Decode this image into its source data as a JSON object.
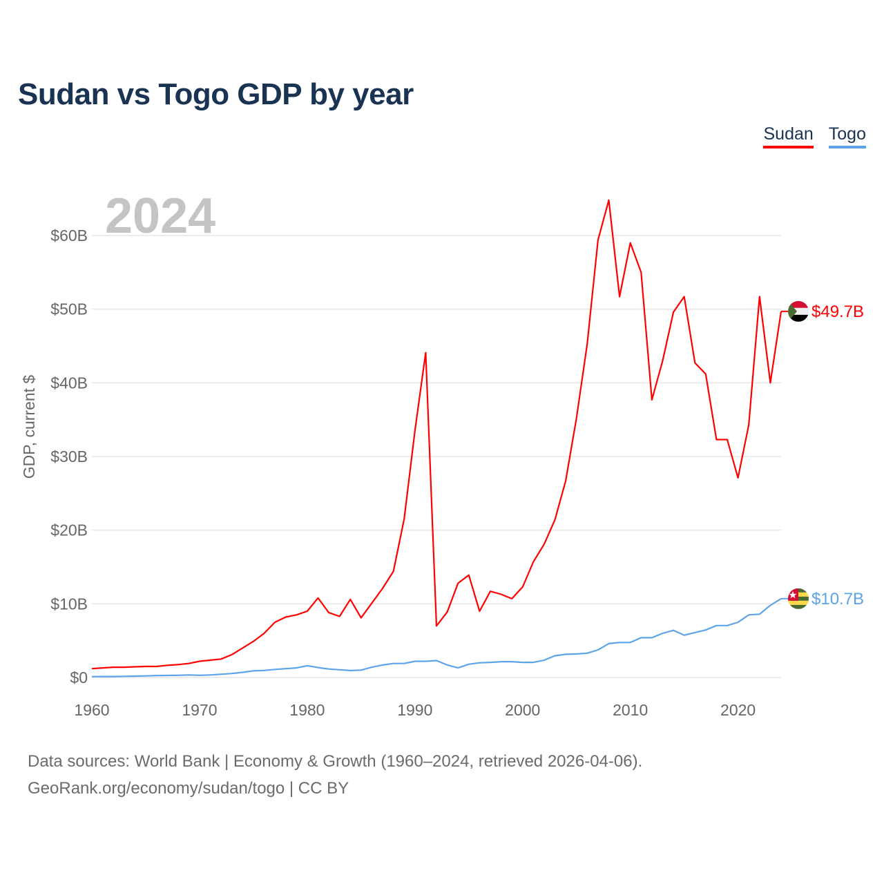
{
  "title": "Sudan vs Togo GDP by year",
  "footer": {
    "line1": "Data sources: World Bank | Economy & Growth (1960–2024, retrieved 2026-04-06).",
    "line2": "GeoRank.org/economy/sudan/togo | CC BY"
  },
  "chart_data": {
    "type": "line",
    "title": "Sudan vs Togo GDP by year",
    "year_label": "2024",
    "xlabel": "",
    "ylabel": "GDP, current $",
    "xlim": [
      1960,
      2024
    ],
    "ylim": [
      0,
      65
    ],
    "x_ticks": [
      1960,
      1970,
      1980,
      1990,
      2000,
      2010,
      2020
    ],
    "x_tick_labels": [
      "1960",
      "1970",
      "1980",
      "1990",
      "2000",
      "2010",
      "2020"
    ],
    "y_ticks": [
      0,
      10,
      20,
      30,
      40,
      50,
      60
    ],
    "y_tick_labels": [
      "$0",
      "$10B",
      "$20B",
      "$30B",
      "$40B",
      "$50B",
      "$60B"
    ],
    "grid": true,
    "legend_position": "top-right",
    "x": [
      1960,
      1961,
      1962,
      1963,
      1964,
      1965,
      1966,
      1967,
      1968,
      1969,
      1970,
      1971,
      1972,
      1973,
      1974,
      1975,
      1976,
      1977,
      1978,
      1979,
      1980,
      1981,
      1982,
      1983,
      1984,
      1985,
      1986,
      1987,
      1988,
      1989,
      1990,
      1991,
      1992,
      1993,
      1994,
      1995,
      1996,
      1997,
      1998,
      1999,
      2000,
      2001,
      2002,
      2003,
      2004,
      2005,
      2006,
      2007,
      2008,
      2009,
      2010,
      2011,
      2012,
      2013,
      2014,
      2015,
      2016,
      2017,
      2018,
      2019,
      2020,
      2021,
      2022,
      2023,
      2024
    ],
    "series": [
      {
        "name": "Sudan",
        "color": "#ff0000",
        "end_label": "$49.7B",
        "flag": "sudan-flag",
        "values": [
          1.2,
          1.3,
          1.4,
          1.4,
          1.45,
          1.5,
          1.5,
          1.65,
          1.75,
          1.9,
          2.2,
          2.35,
          2.5,
          3.1,
          4.0,
          4.9,
          6.0,
          7.5,
          8.2,
          8.5,
          9.0,
          10.8,
          8.8,
          8.3,
          10.6,
          8.1,
          10.1,
          12.1,
          14.4,
          21.5,
          33.5,
          44.1,
          7.0,
          8.9,
          12.8,
          13.9,
          9.0,
          11.7,
          11.3,
          10.7,
          12.3,
          15.7,
          18.1,
          21.4,
          26.7,
          35.2,
          45.3,
          59.4,
          64.8,
          51.7,
          59.0,
          55.0,
          37.7,
          43.0,
          49.6,
          51.7,
          42.7,
          41.2,
          32.3,
          32.3,
          27.1,
          34.3,
          51.7,
          40.0,
          49.7
        ]
      },
      {
        "name": "Togo",
        "color": "#5ba4ea",
        "end_label": "$10.7B",
        "flag": "togo-flag",
        "values": [
          0.12,
          0.13,
          0.13,
          0.16,
          0.19,
          0.22,
          0.26,
          0.28,
          0.3,
          0.35,
          0.3,
          0.35,
          0.44,
          0.54,
          0.7,
          0.9,
          0.96,
          1.1,
          1.2,
          1.3,
          1.6,
          1.35,
          1.15,
          1.05,
          0.95,
          1.0,
          1.4,
          1.7,
          1.9,
          1.9,
          2.2,
          2.2,
          2.3,
          1.7,
          1.3,
          1.8,
          2.0,
          2.05,
          2.15,
          2.15,
          2.05,
          2.05,
          2.35,
          2.95,
          3.15,
          3.2,
          3.3,
          3.75,
          4.6,
          4.75,
          4.75,
          5.4,
          5.4,
          6.0,
          6.4,
          5.75,
          6.1,
          6.45,
          7.05,
          7.05,
          7.5,
          8.5,
          8.6,
          9.8,
          10.7
        ]
      }
    ]
  }
}
